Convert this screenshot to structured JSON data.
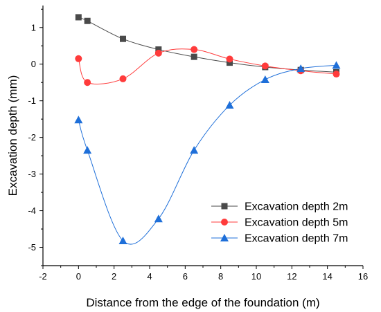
{
  "chart_data": {
    "type": "line",
    "title": "",
    "xlabel": "Distance from the edge of the foundation (m)",
    "ylabel": "Excavation depth (mm)",
    "xlim": [
      -2,
      16
    ],
    "ylim": [
      -5.5,
      1.6
    ],
    "xticks": [
      -2,
      0,
      2,
      4,
      6,
      8,
      10,
      12,
      14,
      16
    ],
    "yticks": [
      1,
      0,
      -1,
      -2,
      -3,
      -4,
      -5
    ],
    "xtick_labels": [
      "-2",
      "0",
      "2",
      "4",
      "6",
      "8",
      "10",
      "12",
      "14",
      "16"
    ],
    "ytick_labels": [
      "1",
      "0",
      "-1",
      "-2",
      "-3",
      "-4",
      "-5"
    ],
    "grid": false,
    "legend_position": "bottom-right",
    "series": [
      {
        "name": "Excavation depth 2m",
        "color": "#4a4a4a",
        "marker": "square",
        "x": [
          0,
          0.5,
          2.5,
          4.5,
          6.5,
          8.5,
          10.5,
          12.5,
          14.5
        ],
        "y": [
          1.28,
          1.18,
          0.69,
          0.4,
          0.2,
          0.04,
          -0.08,
          -0.16,
          -0.22
        ]
      },
      {
        "name": "Excavation depth 5m",
        "color": "#ff3b3b",
        "marker": "circle",
        "x": [
          0,
          0.5,
          2.5,
          4.5,
          6.5,
          8.5,
          10.5,
          12.5,
          14.5
        ],
        "y": [
          0.15,
          -0.5,
          -0.4,
          0.3,
          0.4,
          0.14,
          -0.05,
          -0.18,
          -0.27
        ]
      },
      {
        "name": "Excavation depth 7m",
        "color": "#1e6fd9",
        "marker": "triangle",
        "x": [
          0,
          0.5,
          2.5,
          4.5,
          6.5,
          8.5,
          10.5,
          12.5,
          14.5
        ],
        "y": [
          -1.52,
          -2.35,
          -4.82,
          -4.22,
          -2.35,
          -1.12,
          -0.42,
          -0.12,
          -0.03
        ]
      }
    ]
  }
}
